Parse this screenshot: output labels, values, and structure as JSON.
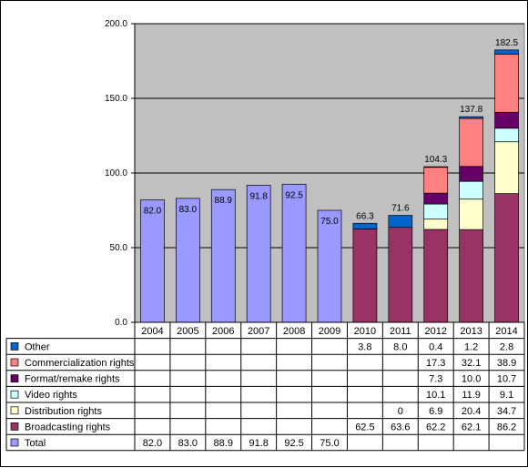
{
  "chart_data": {
    "type": "bar",
    "categories": [
      "2004",
      "2005",
      "2006",
      "2007",
      "2008",
      "2009",
      "2010",
      "2011",
      "2012",
      "2013",
      "2014"
    ],
    "ylim": [
      0,
      200
    ],
    "yticks": [
      "0.0",
      "50.0",
      "100.0",
      "150.0",
      "200.0"
    ],
    "grid": true,
    "series": [
      {
        "name": "Other",
        "color": "#0066cc",
        "values": [
          null,
          null,
          null,
          null,
          null,
          null,
          3.8,
          8.0,
          0.4,
          1.2,
          2.8
        ],
        "labels": [
          "",
          "",
          "",
          "",
          "",
          "",
          "3.8",
          "8.0",
          "0.4",
          "1.2",
          "2.8"
        ]
      },
      {
        "name": "Commercialization rights",
        "color": "#ff8080",
        "values": [
          null,
          null,
          null,
          null,
          null,
          null,
          null,
          null,
          17.3,
          32.1,
          38.9
        ],
        "labels": [
          "",
          "",
          "",
          "",
          "",
          "",
          "",
          "",
          "17.3",
          "32.1",
          "38.9"
        ]
      },
      {
        "name": "Format/remake rights",
        "color": "#660066",
        "values": [
          null,
          null,
          null,
          null,
          null,
          null,
          null,
          null,
          7.3,
          10.0,
          10.7
        ],
        "labels": [
          "",
          "",
          "",
          "",
          "",
          "",
          "",
          "",
          "7.3",
          "10.0",
          "10.7"
        ]
      },
      {
        "name": "Video rights",
        "color": "#ccffff",
        "values": [
          null,
          null,
          null,
          null,
          null,
          null,
          null,
          null,
          10.1,
          11.9,
          9.1
        ],
        "labels": [
          "",
          "",
          "",
          "",
          "",
          "",
          "",
          "",
          "10.1",
          "11.9",
          "9.1"
        ]
      },
      {
        "name": "Distribution rights",
        "color": "#ffffcc",
        "values": [
          null,
          null,
          null,
          null,
          null,
          null,
          null,
          0,
          6.9,
          20.4,
          34.7
        ],
        "labels": [
          "",
          "",
          "",
          "",
          "",
          "",
          "",
          "0",
          "6.9",
          "20.4",
          "34.7"
        ]
      },
      {
        "name": "Broadcasting rights",
        "color": "#993366",
        "values": [
          null,
          null,
          null,
          null,
          null,
          null,
          62.5,
          63.6,
          62.2,
          62.1,
          86.2
        ],
        "labels": [
          "",
          "",
          "",
          "",
          "",
          "",
          "62.5",
          "63.6",
          "62.2",
          "62.1",
          "86.2"
        ]
      },
      {
        "name": "Total",
        "color": "#9999ff",
        "values": [
          82.0,
          83.0,
          88.9,
          91.8,
          92.5,
          75.0,
          null,
          null,
          null,
          null,
          null
        ],
        "labels": [
          "82.0",
          "83.0",
          "88.9",
          "91.8",
          "92.5",
          "75.0",
          "",
          "",
          "",
          "",
          ""
        ]
      }
    ],
    "totals": [
      "82.0",
      "83.0",
      "88.9",
      "91.8",
      "92.5",
      "75.0",
      "66.3",
      "71.6",
      "104.3",
      "137.8",
      "182.5"
    ]
  }
}
